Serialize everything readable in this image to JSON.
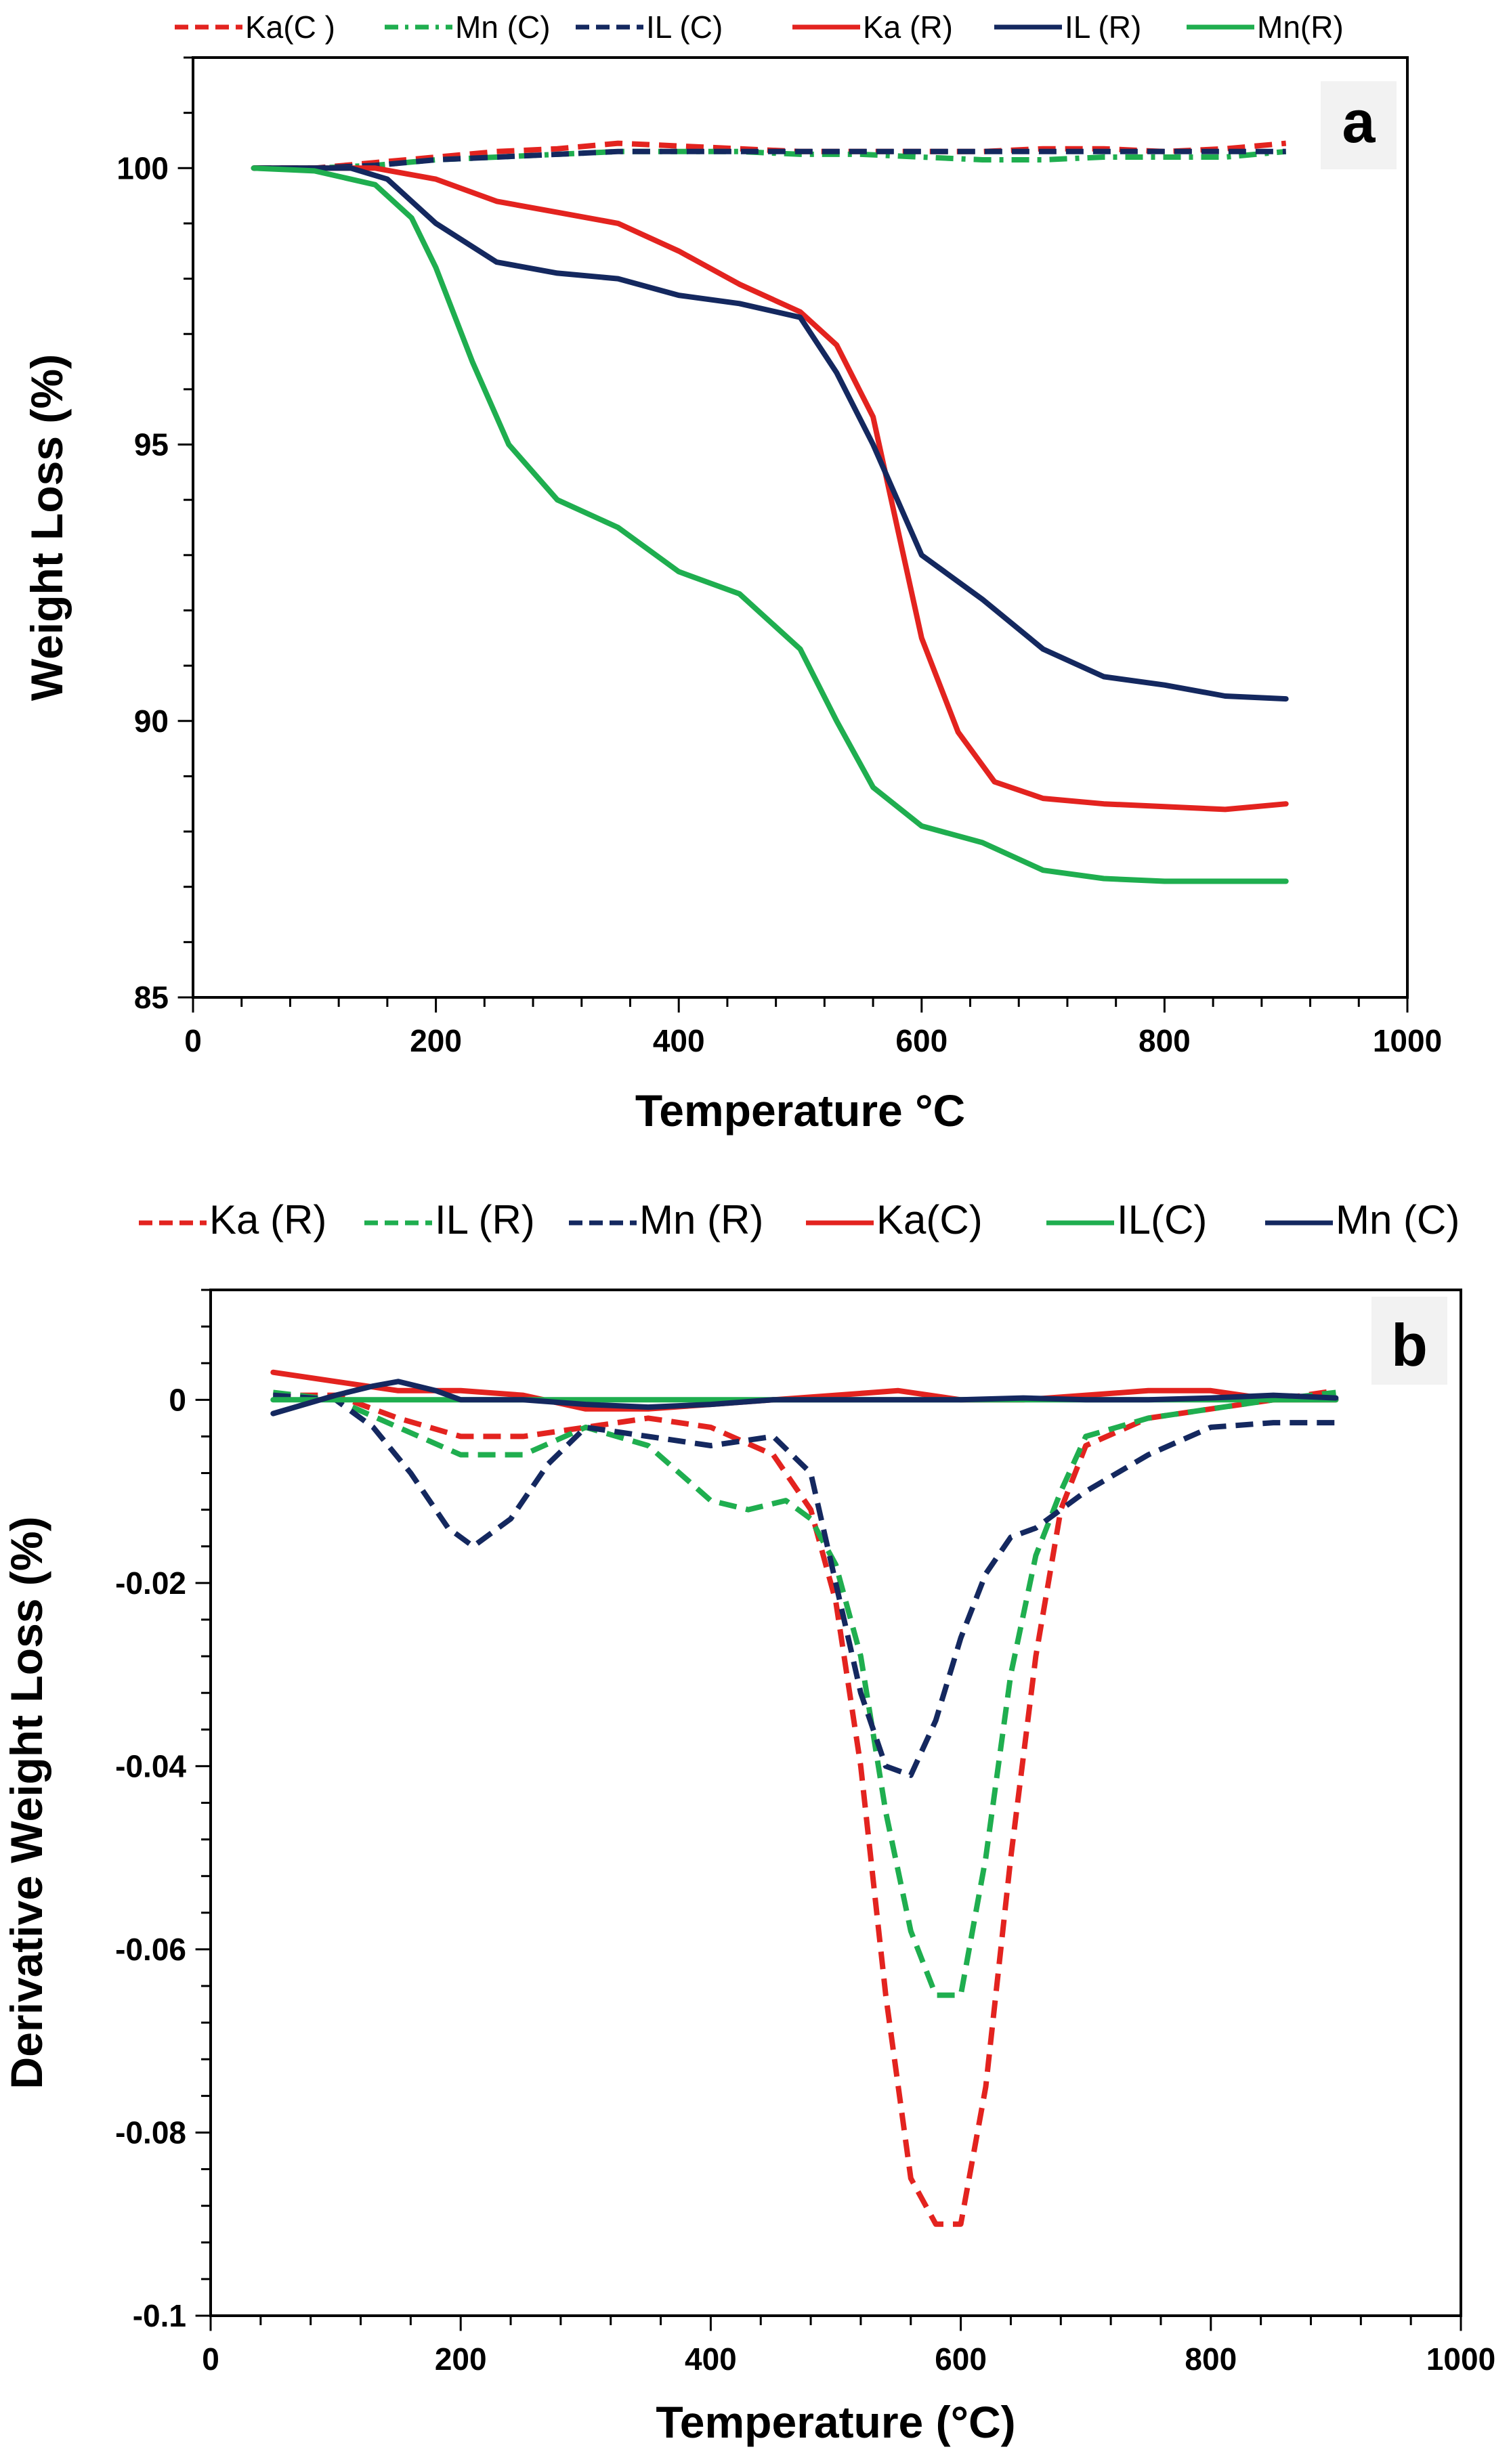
{
  "chart_data": [
    {
      "panel_label": "a",
      "type": "line",
      "xlabel": "Temperature °C",
      "ylabel": "Weight Loss (%)",
      "xlim": [
        0,
        1000
      ],
      "ylim": [
        85,
        102
      ],
      "xticks": [
        "0",
        "200",
        "400",
        "600",
        "800",
        "1000"
      ],
      "yticks": [
        "85",
        "90",
        "95",
        "100"
      ],
      "legend_position": "top",
      "series": [
        {
          "name": "Ka(C )",
          "style": "dashed",
          "color": "#e3231f",
          "x": [
            50,
            100,
            150,
            200,
            250,
            300,
            350,
            400,
            450,
            500,
            550,
            600,
            650,
            700,
            750,
            800,
            850,
            900
          ],
          "y": [
            100,
            100,
            100.1,
            100.2,
            100.3,
            100.35,
            100.45,
            100.4,
            100.35,
            100.3,
            100.3,
            100.3,
            100.3,
            100.35,
            100.35,
            100.3,
            100.35,
            100.45
          ]
        },
        {
          "name": "Mn (C)",
          "style": "dashdot",
          "color": "#1fae4f",
          "x": [
            50,
            100,
            150,
            200,
            250,
            300,
            350,
            400,
            450,
            500,
            550,
            600,
            650,
            700,
            750,
            800,
            850,
            900
          ],
          "y": [
            100,
            100,
            100.05,
            100.15,
            100.2,
            100.25,
            100.3,
            100.3,
            100.3,
            100.25,
            100.25,
            100.2,
            100.15,
            100.15,
            100.2,
            100.2,
            100.2,
            100.3
          ]
        },
        {
          "name": "IL (C)",
          "style": "dashed",
          "color": "#14285f",
          "x": [
            50,
            100,
            150,
            200,
            250,
            300,
            350,
            400,
            450,
            500,
            550,
            600,
            650,
            700,
            750,
            800,
            850,
            900
          ],
          "y": [
            100,
            100,
            100.05,
            100.15,
            100.2,
            100.25,
            100.3,
            100.3,
            100.3,
            100.3,
            100.3,
            100.3,
            100.3,
            100.3,
            100.3,
            100.3,
            100.3,
            100.3
          ]
        },
        {
          "name": "Ka (R)",
          "style": "solid",
          "color": "#e3231f",
          "x": [
            50,
            100,
            150,
            200,
            250,
            300,
            350,
            400,
            450,
            500,
            530,
            560,
            580,
            600,
            630,
            660,
            700,
            750,
            800,
            850,
            900
          ],
          "y": [
            100,
            100,
            100,
            99.8,
            99.4,
            99.2,
            99,
            98.5,
            97.9,
            97.4,
            96.8,
            95.5,
            93.5,
            91.5,
            89.8,
            88.9,
            88.6,
            88.5,
            88.45,
            88.4,
            88.5
          ]
        },
        {
          "name": "IL (R)",
          "style": "solid",
          "color": "#14285f",
          "x": [
            50,
            100,
            130,
            160,
            200,
            250,
            300,
            350,
            400,
            450,
            500,
            530,
            560,
            600,
            650,
            700,
            750,
            800,
            850,
            900
          ],
          "y": [
            100,
            100,
            100,
            99.8,
            99,
            98.3,
            98.1,
            98,
            97.7,
            97.55,
            97.3,
            96.3,
            95,
            93,
            92.2,
            91.3,
            90.8,
            90.65,
            90.45,
            90.4
          ]
        },
        {
          "name": "Mn(R)",
          "style": "solid",
          "color": "#1fae4f",
          "x": [
            50,
            100,
            150,
            180,
            200,
            230,
            260,
            300,
            350,
            400,
            450,
            500,
            530,
            560,
            600,
            650,
            700,
            750,
            800,
            850,
            900
          ],
          "y": [
            100,
            99.95,
            99.7,
            99.1,
            98.2,
            96.5,
            95,
            94,
            93.5,
            92.7,
            92.3,
            91.3,
            90,
            88.8,
            88.1,
            87.8,
            87.3,
            87.15,
            87.1,
            87.1,
            87.1
          ]
        }
      ]
    },
    {
      "panel_label": "b",
      "type": "line",
      "xlabel": "Temperature (°C)",
      "ylabel": "Derivative Weight Loss (%)",
      "xlim": [
        0,
        1000
      ],
      "ylim": [
        -0.1,
        0.012
      ],
      "xticks": [
        "0",
        "200",
        "400",
        "600",
        "800",
        "1000"
      ],
      "yticks": [
        "-0.1",
        "-0.08",
        "-0.06",
        "-0.04",
        "-0.02",
        "0"
      ],
      "legend_position": "top",
      "series": [
        {
          "name": "Ka (R)",
          "style": "dashed",
          "color": "#e3231f",
          "x": [
            50,
            100,
            150,
            200,
            250,
            300,
            350,
            400,
            450,
            480,
            500,
            520,
            540,
            560,
            580,
            600,
            620,
            640,
            660,
            680,
            700,
            750,
            800,
            850,
            900
          ],
          "y": [
            0.0005,
            0.0005,
            -0.002,
            -0.004,
            -0.004,
            -0.003,
            -0.002,
            -0.003,
            -0.006,
            -0.012,
            -0.022,
            -0.04,
            -0.065,
            -0.085,
            -0.09,
            -0.09,
            -0.075,
            -0.05,
            -0.028,
            -0.012,
            -0.005,
            -0.002,
            -0.001,
            0,
            0.001
          ]
        },
        {
          "name": "IL (R)",
          "style": "dashed",
          "color": "#1fae4f",
          "x": [
            50,
            100,
            150,
            200,
            250,
            300,
            350,
            400,
            430,
            460,
            480,
            500,
            520,
            540,
            560,
            580,
            600,
            620,
            640,
            660,
            680,
            700,
            750,
            800,
            850,
            900
          ],
          "y": [
            0.0008,
            0,
            -0.003,
            -0.006,
            -0.006,
            -0.003,
            -0.005,
            -0.011,
            -0.012,
            -0.011,
            -0.013,
            -0.018,
            -0.028,
            -0.045,
            -0.058,
            -0.065,
            -0.065,
            -0.05,
            -0.03,
            -0.017,
            -0.01,
            -0.004,
            -0.002,
            -0.001,
            0,
            0.0008
          ]
        },
        {
          "name": "Mn (R)",
          "style": "dashed",
          "color": "#14285f",
          "x": [
            50,
            100,
            130,
            160,
            190,
            210,
            240,
            270,
            300,
            350,
            400,
            450,
            480,
            500,
            520,
            540,
            560,
            580,
            600,
            620,
            640,
            660,
            700,
            750,
            800,
            850,
            900
          ],
          "y": [
            0.0005,
            0,
            -0.003,
            -0.008,
            -0.014,
            -0.016,
            -0.013,
            -0.007,
            -0.003,
            -0.004,
            -0.005,
            -0.004,
            -0.008,
            -0.02,
            -0.032,
            -0.04,
            -0.041,
            -0.035,
            -0.026,
            -0.019,
            -0.015,
            -0.014,
            -0.01,
            -0.006,
            -0.003,
            -0.0025,
            -0.0025
          ]
        },
        {
          "name": "Ka(C)",
          "style": "solid",
          "color": "#e3231f",
          "x": [
            50,
            100,
            150,
            200,
            250,
            300,
            350,
            400,
            450,
            500,
            550,
            600,
            650,
            700,
            750,
            800,
            850,
            900
          ],
          "y": [
            0.003,
            0.002,
            0.001,
            0.001,
            0.0005,
            -0.001,
            -0.001,
            -0.0005,
            0,
            0.0005,
            0.001,
            0,
            0,
            0.0005,
            0.001,
            0.001,
            0,
            0
          ]
        },
        {
          "name": "IL(C)",
          "style": "solid",
          "color": "#1fae4f",
          "x": [
            50,
            100,
            150,
            200,
            300,
            400,
            500,
            600,
            700,
            800,
            900
          ],
          "y": [
            0,
            0,
            0,
            0,
            0,
            0,
            0,
            0,
            0,
            0,
            0
          ]
        },
        {
          "name": "Mn (C)",
          "style": "solid",
          "color": "#14285f",
          "x": [
            50,
            100,
            130,
            150,
            180,
            200,
            250,
            300,
            350,
            400,
            450,
            500,
            550,
            600,
            650,
            700,
            750,
            800,
            850,
            900
          ],
          "y": [
            -0.0015,
            0.0005,
            0.0015,
            0.002,
            0.001,
            0,
            0,
            -0.0005,
            -0.0008,
            -0.0005,
            0,
            0,
            0,
            0,
            0.0002,
            0,
            0,
            0.0002,
            0.0005,
            0.0002
          ]
        }
      ]
    }
  ]
}
